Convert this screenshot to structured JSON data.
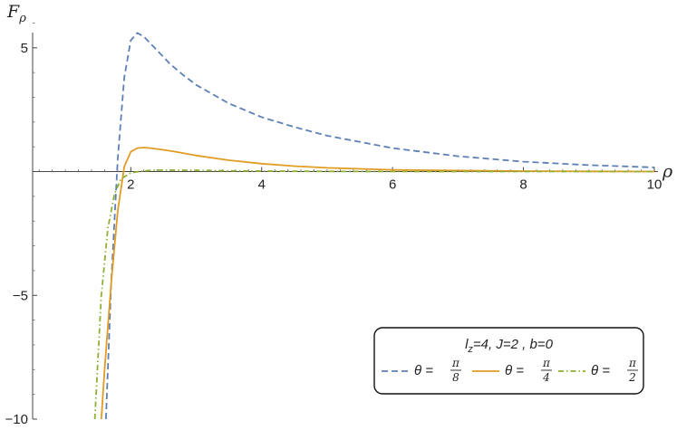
{
  "chart_data": {
    "type": "line",
    "xlabel": "ρ",
    "ylabel": {
      "base": "F",
      "sub": "ρ"
    },
    "xlim": [
      0.5,
      10
    ],
    "ylim": [
      -10,
      6.2
    ],
    "xticks": [
      2,
      4,
      6,
      8,
      10
    ],
    "yticks": [
      -10,
      -5,
      5
    ],
    "xtick_labels": [
      "2",
      "4",
      "6",
      "8",
      "10"
    ],
    "ytick_labels": [
      "−10",
      "−5",
      "5"
    ],
    "grid": false,
    "legend": {
      "placement": "bottom-right",
      "title": {
        "l": "l",
        "l_sub": "z",
        "rest": "=4,  J=2 ,  b=0"
      },
      "entries": [
        {
          "name_prefix": "θ =",
          "num": "π",
          "den": "8",
          "color": "#5e81b5",
          "dash": "dashed"
        },
        {
          "name_prefix": "θ =",
          "num": "π",
          "den": "4",
          "color": "#e19c24",
          "dash": "solid"
        },
        {
          "name_prefix": "θ =",
          "num": "π",
          "den": "2",
          "color": "#8fb032",
          "dash": "dashdot"
        }
      ]
    },
    "series": [
      {
        "color": "#5e81b5",
        "dash": "dashed",
        "x": [
          1.62,
          1.7,
          1.8,
          1.9,
          2.0,
          2.1,
          2.2,
          2.4,
          2.6,
          2.8,
          3.0,
          3.5,
          4.0,
          4.5,
          5.0,
          6.0,
          7.0,
          8.0,
          9.0,
          10.0
        ],
        "y": [
          -10,
          -4.5,
          0.5,
          3.8,
          5.3,
          5.6,
          5.45,
          4.9,
          4.35,
          3.9,
          3.5,
          2.75,
          2.2,
          1.8,
          1.45,
          0.95,
          0.62,
          0.4,
          0.26,
          0.17
        ]
      },
      {
        "color": "#e19c24",
        "dash": "solid",
        "x": [
          1.55,
          1.6,
          1.7,
          1.8,
          1.9,
          2.0,
          2.1,
          2.2,
          2.3,
          2.5,
          2.7,
          3.0,
          3.5,
          4.0,
          4.5,
          5.0,
          6.0,
          7.0,
          8.0,
          9.0,
          10.0
        ],
        "y": [
          -10,
          -8.0,
          -4.5,
          -1.6,
          0.2,
          0.8,
          0.95,
          0.97,
          0.95,
          0.88,
          0.79,
          0.65,
          0.46,
          0.32,
          0.22,
          0.15,
          0.07,
          0.04,
          0.02,
          0.01,
          0.0
        ]
      },
      {
        "color": "#8fb032",
        "dash": "dashdot",
        "x": [
          1.45,
          1.55,
          1.65,
          1.75,
          1.85,
          2.0,
          2.2,
          2.4,
          2.6,
          3.0,
          3.5,
          4.0,
          5.0,
          6.0,
          8.0,
          10.0
        ],
        "y": [
          -10,
          -5.0,
          -2.3,
          -0.9,
          -0.3,
          -0.05,
          0.03,
          0.06,
          0.06,
          0.05,
          0.03,
          0.02,
          0.01,
          0.0,
          0.0,
          0.0
        ]
      }
    ]
  }
}
